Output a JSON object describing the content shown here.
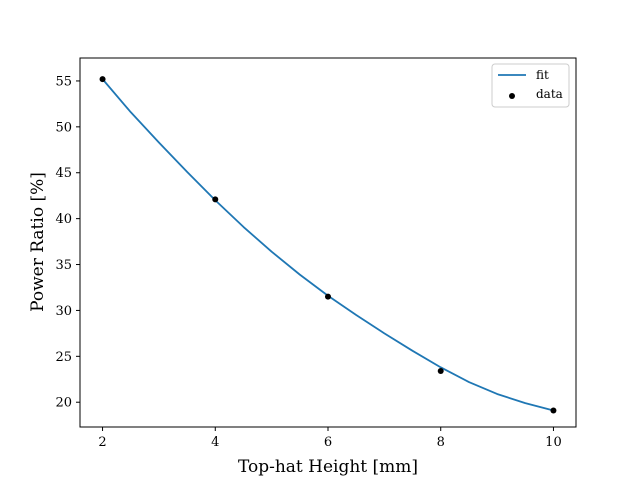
{
  "chart_data": {
    "type": "line",
    "title": "",
    "xlabel": "Top-hat Height [mm]",
    "ylabel": "Power Ratio [%]",
    "xlim": [
      1.6,
      10.4
    ],
    "ylim": [
      17.3,
      57.5
    ],
    "xticks": [
      2,
      4,
      6,
      8,
      10
    ],
    "yticks": [
      20,
      25,
      30,
      35,
      40,
      45,
      50,
      55
    ],
    "grid": false,
    "legend_position": "top-right",
    "series": [
      {
        "name": "fit",
        "kind": "line",
        "color": "#1f77b4",
        "x": [
          2.0,
          2.5,
          3.0,
          3.5,
          4.0,
          4.5,
          5.0,
          5.5,
          6.0,
          6.5,
          7.0,
          7.5,
          8.0,
          8.5,
          9.0,
          9.5,
          10.0
        ],
        "y": [
          55.2,
          51.6,
          48.3,
          45.1,
          42.0,
          39.1,
          36.4,
          33.9,
          31.6,
          29.5,
          27.5,
          25.6,
          23.8,
          22.2,
          20.9,
          19.9,
          19.1
        ]
      },
      {
        "name": "data",
        "kind": "scatter",
        "color": "#000000",
        "x": [
          2,
          4,
          6,
          8,
          10
        ],
        "y": [
          55.2,
          42.1,
          31.5,
          23.4,
          19.1
        ]
      }
    ]
  }
}
